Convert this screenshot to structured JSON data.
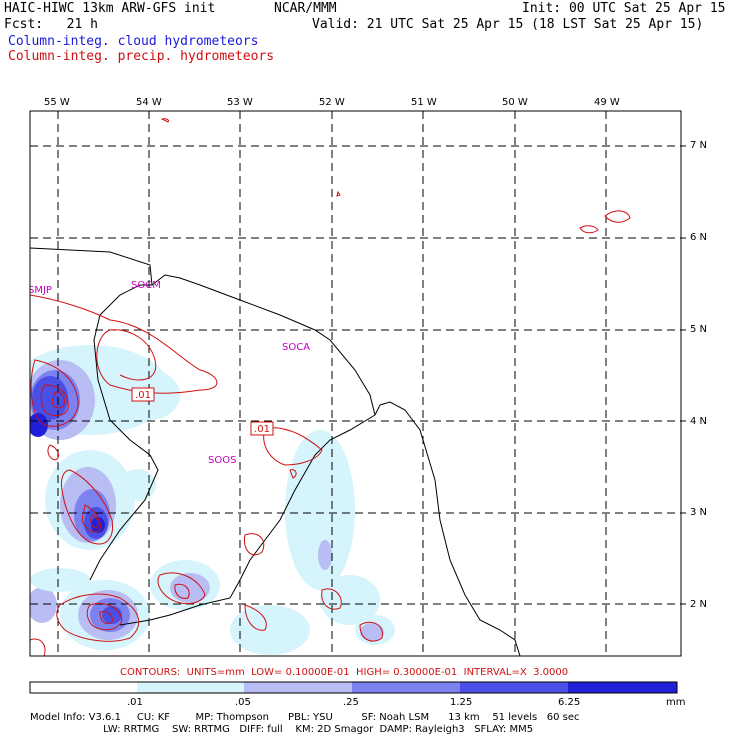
{
  "header": {
    "model_title": "HAIC-HIWC 13km ARW-GFS init",
    "org": "NCAR/MMM",
    "init": "Init: 00 UTC Sat 25 Apr 15",
    "fcst": "Fcst:   21 h",
    "valid": "Valid: 21 UTC Sat 25 Apr 15 (18 LST Sat 25 Apr 15)",
    "legend_cloud": "Column-integ. cloud hydrometeors",
    "legend_precip": "Column-integ. precip. hydrometeors"
  },
  "colors": {
    "cloud_text": "#1a1ad8",
    "precip_text": "#d01010",
    "station_label": "#c000c0",
    "shade_1": "#d6f4fb",
    "shade_2": "#b8bdf4",
    "shade_3": "#7c82f0",
    "shade_4": "#4a50e6",
    "shade_5": "#2020d8"
  },
  "map": {
    "longitude_labels": [
      "55 W",
      "54 W",
      "53 W",
      "52 W",
      "51 W",
      "50 W",
      "49 W"
    ],
    "latitude_labels": [
      "7 N",
      "6 N",
      "5 N",
      "4 N",
      "3 N",
      "2 N"
    ],
    "station_labels": [
      "SMJP",
      "SOCM",
      "SOCA",
      "SOOS"
    ],
    "contour_labels": [
      ".01",
      ".01"
    ]
  },
  "contours_line": "CONTOURS:  UNITS=mm  LOW= 0.10000E-01  HIGH= 0.30000E-01  INTERVAL=X  3.0000",
  "colorbar": {
    "levels": [
      ".01",
      ".05",
      ".25",
      "1.25",
      "6.25"
    ],
    "units": "mm"
  },
  "model_info": {
    "line1": "Model Info: V3.6.1     CU: KF        MP: Thompson      PBL: YSU         SF: Noah LSM      13 km    51 levels   60 sec",
    "line2": "                       LW: RRTMG    SW: RRTMG   DIFF: full    KM: 2D Smagor  DAMP: Rayleigh3   SFLAY: MM5"
  }
}
